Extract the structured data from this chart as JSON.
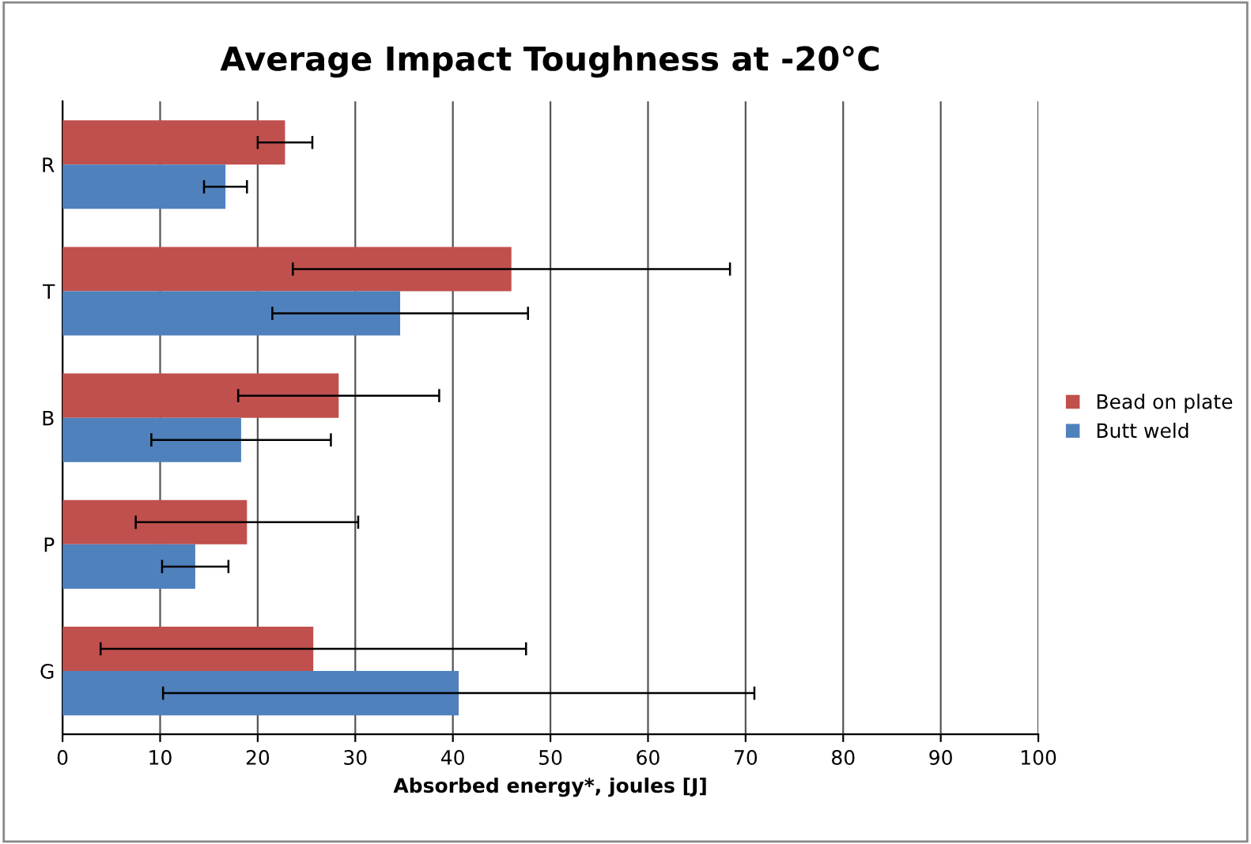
{
  "chart_data": {
    "type": "bar",
    "orientation": "horizontal",
    "title": "Average Impact Toughness at -20°C",
    "xlabel": "Absorbed energy*, joules [J]",
    "categories": [
      "R",
      "T",
      "B",
      "P",
      "G"
    ],
    "series": [
      {
        "name": "Bead on plate",
        "color": "#c0504d",
        "values": [
          22.8,
          46.0,
          28.3,
          18.9,
          25.7
        ],
        "errors": [
          2.8,
          22.4,
          10.3,
          11.4,
          21.8
        ]
      },
      {
        "name": "Butt weld",
        "color": "#4f81bd",
        "values": [
          16.7,
          34.6,
          18.3,
          13.6,
          40.6
        ],
        "errors": [
          2.2,
          13.1,
          9.2,
          3.4,
          30.3
        ]
      }
    ],
    "xlim": [
      0,
      100
    ],
    "xticks": [
      0,
      10,
      20,
      30,
      40,
      50,
      60,
      70,
      80,
      90,
      100
    ],
    "grid": "x",
    "legend": "right"
  }
}
